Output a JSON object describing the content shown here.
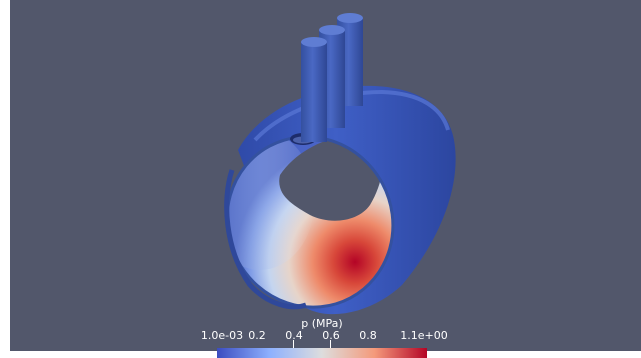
{
  "viewport": {
    "background": "#52576b"
  },
  "model": {
    "shell_color": "#3d5bbf",
    "rod_color": "#3f5fbf",
    "rod_count": 3
  },
  "colorbar": {
    "title": "p (MPa)",
    "ticks": [
      {
        "label": "1.0e-03",
        "value": 0.001
      },
      {
        "label": "0.2",
        "value": 0.2
      },
      {
        "label": "0.4",
        "value": 0.4
      },
      {
        "label": "0.6",
        "value": 0.6
      },
      {
        "label": "0.8",
        "value": 0.8
      },
      {
        "label": "1.1e+00",
        "value": 1.1
      }
    ],
    "colors": [
      "#3b4cc0",
      "#8db0fe",
      "#dddddd",
      "#f49a7b",
      "#b40426"
    ]
  }
}
